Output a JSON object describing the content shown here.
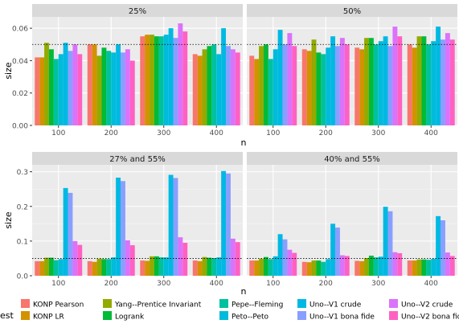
{
  "chart_data": {
    "type": "bar",
    "layout": "faceted 2x2 grid of grouped bar charts",
    "x_label": "n",
    "y_label": "size",
    "x_categories": [
      "100",
      "200",
      "300",
      "400"
    ],
    "reference_line": {
      "y": 0.05,
      "style": "dotted"
    },
    "legend": {
      "title": "est",
      "position": "bottom",
      "entries": [
        {
          "name": "KONP Pearson",
          "color": "#F8766D"
        },
        {
          "name": "KONP LR",
          "color": "#D39200"
        },
        {
          "name": "Yang--Prentice Invariant",
          "color": "#93AA00"
        },
        {
          "name": "Logrank",
          "color": "#00BA38"
        },
        {
          "name": "Pepe--Fleming",
          "color": "#00C19F"
        },
        {
          "name": "Peto--Peto",
          "color": "#00B9E3"
        },
        {
          "name": "Uno--V1 crude",
          "color": "#00B9E3"
        },
        {
          "name": "Uno--V1 bona fide",
          "color": "#8A9EFF"
        },
        {
          "name": "Uno--V2 crude",
          "color": "#DB72FB"
        },
        {
          "name": "Uno--V2 bona fide",
          "color": "#FF61C3"
        }
      ]
    },
    "panels": [
      {
        "title": "25%",
        "ylim": [
          0,
          0.067
        ],
        "y_ticks": [
          "0.00",
          "0.02",
          "0.04",
          "0.06"
        ],
        "y_tick_values": [
          0,
          0.02,
          0.04,
          0.06
        ],
        "values": [
          [
            0.042,
            0.042,
            0.051,
            0.047,
            0.041,
            0.044,
            0.051,
            0.046,
            0.05,
            0.044
          ],
          [
            0.05,
            0.05,
            0.043,
            0.048,
            0.046,
            0.045,
            0.05,
            0.045,
            0.047,
            0.04
          ],
          [
            0.055,
            0.056,
            0.056,
            0.055,
            0.055,
            0.056,
            0.06,
            0.054,
            0.063,
            0.058
          ],
          [
            0.044,
            0.043,
            0.047,
            0.049,
            0.05,
            0.044,
            0.06,
            0.049,
            0.047,
            0.045
          ]
        ]
      },
      {
        "title": "50%",
        "ylim": [
          0,
          0.067
        ],
        "y_ticks": [
          "0.00",
          "0.02",
          "0.04",
          "0.06"
        ],
        "y_tick_values": [
          0,
          0.02,
          0.04,
          0.06
        ],
        "values": [
          [
            0.043,
            0.041,
            0.049,
            0.05,
            0.041,
            0.047,
            0.059,
            0.05,
            0.057,
            0.049
          ],
          [
            0.047,
            0.046,
            0.053,
            0.045,
            0.044,
            0.048,
            0.055,
            0.049,
            0.054,
            0.05
          ],
          [
            0.048,
            0.047,
            0.054,
            0.054,
            0.05,
            0.052,
            0.055,
            0.049,
            0.061,
            0.055
          ],
          [
            0.05,
            0.048,
            0.055,
            0.055,
            0.05,
            0.052,
            0.061,
            0.053,
            0.057,
            0.053
          ]
        ]
      },
      {
        "title": "27% and 55%",
        "ylim": [
          0,
          0.32
        ],
        "y_ticks": [
          "0.0",
          "0.1",
          "0.2",
          "0.3"
        ],
        "y_tick_values": [
          0,
          0.1,
          0.2,
          0.3
        ],
        "values": [
          [
            0.042,
            0.042,
            0.052,
            0.052,
            0.045,
            0.048,
            0.253,
            0.239,
            0.1,
            0.089
          ],
          [
            0.042,
            0.04,
            0.049,
            0.048,
            0.048,
            0.053,
            0.283,
            0.273,
            0.102,
            0.088
          ],
          [
            0.044,
            0.043,
            0.056,
            0.056,
            0.053,
            0.053,
            0.291,
            0.282,
            0.111,
            0.095
          ],
          [
            0.044,
            0.042,
            0.054,
            0.052,
            0.051,
            0.053,
            0.302,
            0.295,
            0.107,
            0.097
          ]
        ]
      },
      {
        "title": "40% and 55%",
        "ylim": [
          0,
          0.32
        ],
        "y_ticks": [
          "0.0",
          "0.1",
          "0.2",
          "0.3"
        ],
        "y_tick_values": [
          0,
          0.1,
          0.2,
          0.3
        ],
        "values": [
          [
            0.044,
            0.044,
            0.049,
            0.054,
            0.048,
            0.056,
            0.12,
            0.105,
            0.075,
            0.066
          ],
          [
            0.04,
            0.039,
            0.044,
            0.044,
            0.04,
            0.048,
            0.15,
            0.139,
            0.059,
            0.057
          ],
          [
            0.043,
            0.042,
            0.051,
            0.058,
            0.053,
            0.055,
            0.199,
            0.186,
            0.068,
            0.065
          ],
          [
            0.044,
            0.044,
            0.047,
            0.047,
            0.046,
            0.049,
            0.172,
            0.16,
            0.067,
            0.057
          ]
        ]
      }
    ]
  }
}
